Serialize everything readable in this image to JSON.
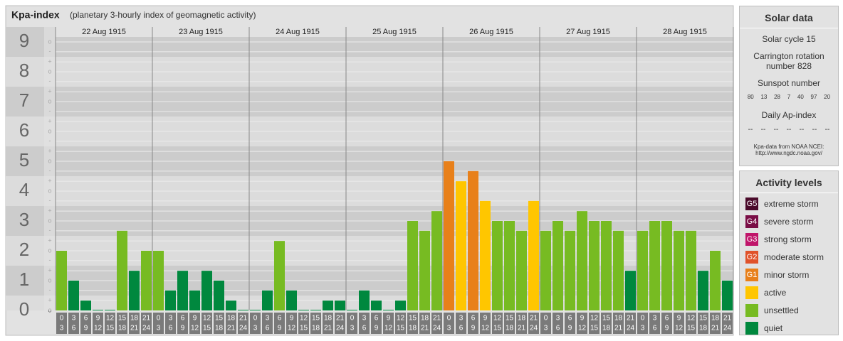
{
  "chart_data": {
    "type": "bar",
    "title": "Kpa-index",
    "subtitle": "(planetary 3-hourly index of geomagnetic activity)",
    "interval_start": [
      "0",
      "3",
      "6",
      "9",
      "12",
      "15",
      "18",
      "21"
    ],
    "interval_end": [
      "3",
      "6",
      "9",
      "12",
      "15",
      "18",
      "21",
      "24"
    ],
    "series": [
      {
        "name": "22 Aug 1915",
        "values": [
          2,
          1,
          0.33,
          0,
          0,
          2.67,
          1.33,
          2
        ],
        "colors": [
          "#77bb22",
          "#00883e",
          "#00883e",
          "#00883e",
          "#00883e",
          "#77bb22",
          "#00883e",
          "#77bb22"
        ]
      },
      {
        "name": "23 Aug 1915",
        "values": [
          2,
          0.67,
          1.33,
          0.67,
          1.33,
          1,
          0.33,
          0
        ],
        "colors": [
          "#77bb22",
          "#00883e",
          "#00883e",
          "#00883e",
          "#00883e",
          "#00883e",
          "#00883e",
          "#00883e"
        ]
      },
      {
        "name": "24 Aug 1915",
        "values": [
          0,
          0.67,
          2.33,
          0.67,
          0,
          0,
          0.33,
          0.33
        ],
        "colors": [
          "#00883e",
          "#00883e",
          "#77bb22",
          "#00883e",
          "#00883e",
          "#00883e",
          "#00883e",
          "#00883e"
        ]
      },
      {
        "name": "25 Aug 1915",
        "values": [
          0,
          0.67,
          0.33,
          0,
          0.33,
          3,
          2.67,
          3.33
        ],
        "colors": [
          "#00883e",
          "#00883e",
          "#00883e",
          "#00883e",
          "#00883e",
          "#77bb22",
          "#77bb22",
          "#77bb22"
        ]
      },
      {
        "name": "26 Aug 1915",
        "values": [
          5,
          4.33,
          4.67,
          3.67,
          3,
          3,
          2.67,
          3.67
        ],
        "colors": [
          "#e8801a",
          "#ffc600",
          "#e8801a",
          "#ffc600",
          "#77bb22",
          "#77bb22",
          "#77bb22",
          "#ffc600"
        ]
      },
      {
        "name": "27 Aug 1915",
        "values": [
          2.67,
          3,
          2.67,
          3.33,
          3,
          3,
          2.67,
          1.33
        ],
        "colors": [
          "#77bb22",
          "#77bb22",
          "#77bb22",
          "#77bb22",
          "#77bb22",
          "#77bb22",
          "#77bb22",
          "#00883e"
        ]
      },
      {
        "name": "28 Aug 1915",
        "values": [
          2.67,
          3,
          3,
          2.67,
          2.67,
          1.33,
          2,
          1
        ],
        "colors": [
          "#77bb22",
          "#77bb22",
          "#77bb22",
          "#77bb22",
          "#77bb22",
          "#00883e",
          "#77bb22",
          "#00883e"
        ]
      }
    ],
    "ylim": [
      0,
      9.5
    ],
    "yticks": [
      0,
      1,
      2,
      3,
      4,
      5,
      6,
      7,
      8,
      9
    ],
    "minor_yticks": [
      {
        "value": 0,
        "label": "o"
      },
      {
        "value": 0.33,
        "label": "+"
      },
      {
        "value": 0.67,
        "label": "-"
      },
      {
        "value": 1,
        "label": "o"
      },
      {
        "value": 1.33,
        "label": "+"
      },
      {
        "value": 1.67,
        "label": "-"
      },
      {
        "value": 2,
        "label": "o"
      },
      {
        "value": 2.33,
        "label": "+"
      },
      {
        "value": 2.67,
        "label": "-"
      },
      {
        "value": 3,
        "label": "o"
      },
      {
        "value": 3.33,
        "label": "+"
      },
      {
        "value": 3.67,
        "label": "-"
      },
      {
        "value": 4,
        "label": "o"
      },
      {
        "value": 4.33,
        "label": "+"
      },
      {
        "value": 4.67,
        "label": "-"
      },
      {
        "value": 5,
        "label": "o"
      },
      {
        "value": 5.33,
        "label": "+"
      },
      {
        "value": 5.67,
        "label": "-"
      },
      {
        "value": 6,
        "label": "o"
      },
      {
        "value": 6.33,
        "label": "+"
      },
      {
        "value": 6.67,
        "label": "-"
      },
      {
        "value": 7,
        "label": "o"
      },
      {
        "value": 7.33,
        "label": "+"
      },
      {
        "value": 7.67,
        "label": "-"
      },
      {
        "value": 8,
        "label": "o"
      },
      {
        "value": 8.33,
        "label": "+"
      },
      {
        "value": 8.67,
        "label": "-"
      },
      {
        "value": 9,
        "label": "o"
      }
    ]
  },
  "solar_data": {
    "title": "Solar data",
    "cycle": "Solar cycle 15",
    "carrington": "Carrington rotation number 828",
    "sunspot_title": "Sunspot number",
    "sunspots": [
      80,
      13,
      28,
      7,
      40,
      97,
      20
    ],
    "ap_title": "Daily Ap-index",
    "ap": [
      "--",
      "--",
      "--",
      "--",
      "--",
      "--",
      "--"
    ],
    "source": "Kpa-data from NOAA NCEI:",
    "source_url": "http://www.ngdc.noaa.gov/"
  },
  "activity_levels": {
    "title": "Activity levels",
    "levels": [
      {
        "badge": "G5",
        "name": "extreme storm",
        "color": "#4a0a2a"
      },
      {
        "badge": "G4",
        "name": "severe storm",
        "color": "#7a0e46"
      },
      {
        "badge": "G3",
        "name": "strong storm",
        "color": "#c0156a"
      },
      {
        "badge": "G2",
        "name": "moderate storm",
        "color": "#e0522a"
      },
      {
        "badge": "G1",
        "name": "minor storm",
        "color": "#e8801a"
      },
      {
        "name": "active",
        "color": "#ffc600"
      },
      {
        "name": "unsettled",
        "color": "#77bb22"
      },
      {
        "name": "quiet",
        "color": "#00883e"
      }
    ]
  }
}
